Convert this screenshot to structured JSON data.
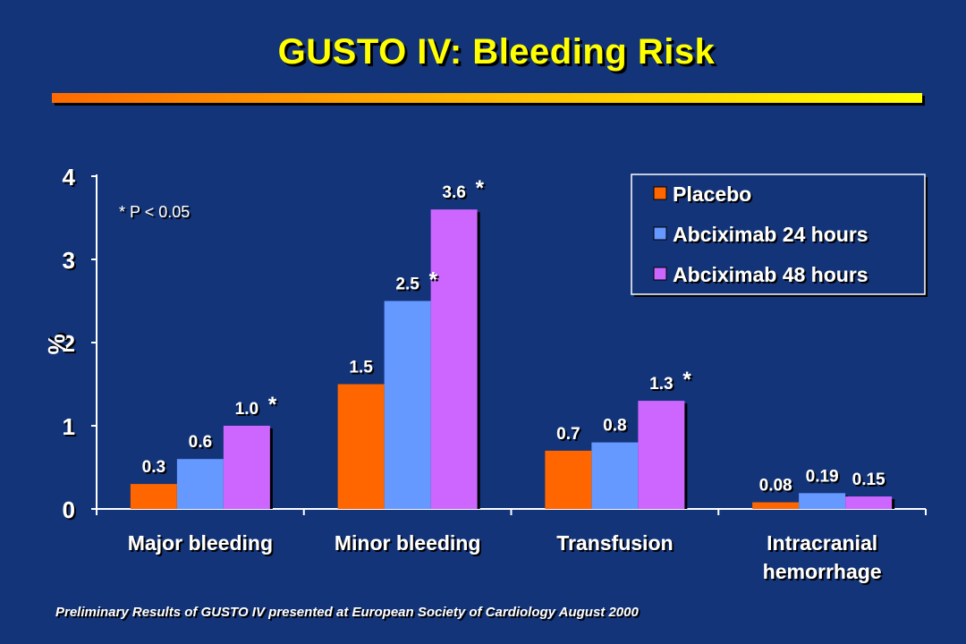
{
  "slide": {
    "title": "GUSTO IV: Bleeding Risk",
    "footnote": "Preliminary Results of GUSTO IV presented at European Society of Cardiology August 2000",
    "colors": {
      "background": "#133479",
      "title": "#ffff00",
      "text": "#ffffff"
    }
  },
  "chart_data": {
    "type": "bar",
    "title": "",
    "xlabel": "",
    "ylabel": "%",
    "ylim": [
      0,
      4
    ],
    "yticks": [
      "0",
      "1",
      "2",
      "3",
      "4"
    ],
    "categories": [
      "Major bleeding",
      "Minor bleeding",
      "Transfusion",
      "Intracranial hemorrhage"
    ],
    "category_lines": [
      [
        "Major bleeding"
      ],
      [
        "Minor bleeding"
      ],
      [
        "Transfusion"
      ],
      [
        "Intracranial",
        "hemorrhage"
      ]
    ],
    "series": [
      {
        "name": "Placebo",
        "color": "#ff6600",
        "values": [
          0.3,
          1.5,
          0.7,
          0.08
        ],
        "labels": [
          "0.3",
          "1.5",
          "0.7",
          "0.08"
        ],
        "significant": [
          false,
          false,
          false,
          false
        ]
      },
      {
        "name": "Abciximab 24 hours",
        "color": "#6699ff",
        "values": [
          0.6,
          2.5,
          0.8,
          0.19
        ],
        "labels": [
          "0.6",
          "2.5",
          "0.8",
          "0.19"
        ],
        "significant": [
          false,
          true,
          false,
          false
        ]
      },
      {
        "name": "Abciximab 48 hours",
        "color": "#cc66ff",
        "values": [
          1.0,
          3.6,
          1.3,
          0.15
        ],
        "labels": [
          "1.0",
          "3.6",
          "1.3",
          "0.15"
        ],
        "significant": [
          true,
          true,
          true,
          false
        ]
      }
    ],
    "significance_marker": "*",
    "annotation": "* P < 0.05",
    "legend_position": "top-right",
    "grid": false
  }
}
